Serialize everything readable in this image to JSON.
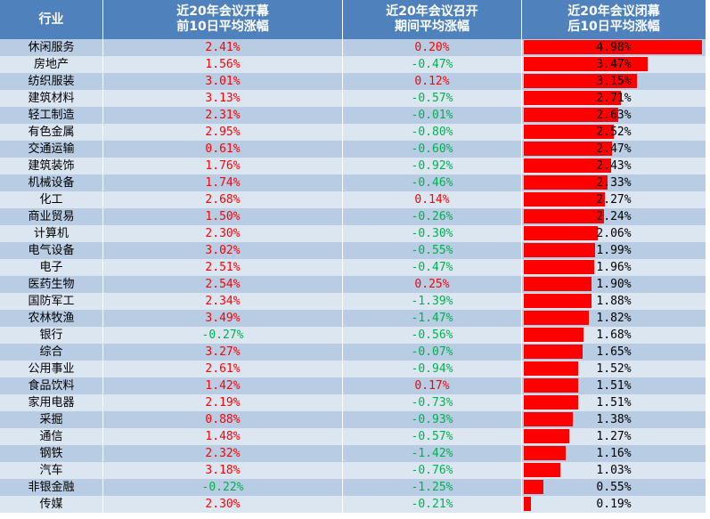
{
  "table": {
    "headers": {
      "industry": "行业",
      "pre_line1": "近20年会议开幕",
      "pre_line2": "前10日平均涨幅",
      "mid_line1": "近20年会议召开",
      "mid_line2": "期间平均涨幅",
      "post_line1": "近20年会议闭幕",
      "post_line2": "后10日平均涨幅"
    },
    "colors": {
      "header_bg": "#4f81bd",
      "row_odd": "#b8cce4",
      "row_even": "#dce6f1",
      "positive_text": "#ff0000",
      "negative_text": "#00b050",
      "bar": "#ff0000"
    }
  },
  "chart_data": {
    "type": "table",
    "columns": [
      "行业",
      "近20年会议开幕前10日平均涨幅",
      "近20年会议召开期间平均涨幅",
      "近20年会议闭幕后10日平均涨幅"
    ],
    "bar_column_max": 4.98,
    "rows": [
      {
        "industry": "休闲服务",
        "pre": "2.41%",
        "pre_value": 2.41,
        "mid": "0.20%",
        "mid_value": 0.2,
        "post": "4.98%",
        "post_value": 4.98
      },
      {
        "industry": "房地产",
        "pre": "1.56%",
        "pre_value": 1.56,
        "mid": "-0.47%",
        "mid_value": -0.47,
        "post": "3.47%",
        "post_value": 3.47
      },
      {
        "industry": "纺织服装",
        "pre": "3.01%",
        "pre_value": 3.01,
        "mid": "0.12%",
        "mid_value": 0.12,
        "post": "3.15%",
        "post_value": 3.15
      },
      {
        "industry": "建筑材料",
        "pre": "3.13%",
        "pre_value": 3.13,
        "mid": "-0.57%",
        "mid_value": -0.57,
        "post": "2.71%",
        "post_value": 2.71
      },
      {
        "industry": "轻工制造",
        "pre": "2.31%",
        "pre_value": 2.31,
        "mid": "-0.01%",
        "mid_value": -0.01,
        "post": "2.63%",
        "post_value": 2.63
      },
      {
        "industry": "有色金属",
        "pre": "2.95%",
        "pre_value": 2.95,
        "mid": "-0.80%",
        "mid_value": -0.8,
        "post": "2.52%",
        "post_value": 2.52
      },
      {
        "industry": "交通运输",
        "pre": "0.61%",
        "pre_value": 0.61,
        "mid": "-0.60%",
        "mid_value": -0.6,
        "post": "2.47%",
        "post_value": 2.47
      },
      {
        "industry": "建筑装饰",
        "pre": "1.76%",
        "pre_value": 1.76,
        "mid": "-0.92%",
        "mid_value": -0.92,
        "post": "2.43%",
        "post_value": 2.43
      },
      {
        "industry": "机械设备",
        "pre": "1.74%",
        "pre_value": 1.74,
        "mid": "-0.46%",
        "mid_value": -0.46,
        "post": "2.33%",
        "post_value": 2.33
      },
      {
        "industry": "化工",
        "pre": "2.68%",
        "pre_value": 2.68,
        "mid": "0.14%",
        "mid_value": 0.14,
        "post": "2.27%",
        "post_value": 2.27
      },
      {
        "industry": "商业贸易",
        "pre": "1.50%",
        "pre_value": 1.5,
        "mid": "-0.26%",
        "mid_value": -0.26,
        "post": "2.24%",
        "post_value": 2.24
      },
      {
        "industry": "计算机",
        "pre": "2.30%",
        "pre_value": 2.3,
        "mid": "-0.30%",
        "mid_value": -0.3,
        "post": "2.06%",
        "post_value": 2.06
      },
      {
        "industry": "电气设备",
        "pre": "3.02%",
        "pre_value": 3.02,
        "mid": "-0.55%",
        "mid_value": -0.55,
        "post": "1.99%",
        "post_value": 1.99
      },
      {
        "industry": "电子",
        "pre": "2.51%",
        "pre_value": 2.51,
        "mid": "-0.47%",
        "mid_value": -0.47,
        "post": "1.96%",
        "post_value": 1.96
      },
      {
        "industry": "医药生物",
        "pre": "2.54%",
        "pre_value": 2.54,
        "mid": "0.25%",
        "mid_value": 0.25,
        "post": "1.90%",
        "post_value": 1.9
      },
      {
        "industry": "国防军工",
        "pre": "2.34%",
        "pre_value": 2.34,
        "mid": "-1.39%",
        "mid_value": -1.39,
        "post": "1.88%",
        "post_value": 1.88
      },
      {
        "industry": "农林牧渔",
        "pre": "3.49%",
        "pre_value": 3.49,
        "mid": "-1.47%",
        "mid_value": -1.47,
        "post": "1.82%",
        "post_value": 1.82
      },
      {
        "industry": "银行",
        "pre": "-0.27%",
        "pre_value": -0.27,
        "mid": "-0.56%",
        "mid_value": -0.56,
        "post": "1.68%",
        "post_value": 1.68
      },
      {
        "industry": "综合",
        "pre": "3.27%",
        "pre_value": 3.27,
        "mid": "-0.07%",
        "mid_value": -0.07,
        "post": "1.65%",
        "post_value": 1.65
      },
      {
        "industry": "公用事业",
        "pre": "2.61%",
        "pre_value": 2.61,
        "mid": "-0.94%",
        "mid_value": -0.94,
        "post": "1.52%",
        "post_value": 1.52
      },
      {
        "industry": "食品饮料",
        "pre": "1.42%",
        "pre_value": 1.42,
        "mid": "0.17%",
        "mid_value": 0.17,
        "post": "1.51%",
        "post_value": 1.51
      },
      {
        "industry": "家用电器",
        "pre": "2.19%",
        "pre_value": 2.19,
        "mid": "-0.73%",
        "mid_value": -0.73,
        "post": "1.51%",
        "post_value": 1.51
      },
      {
        "industry": "采掘",
        "pre": "0.88%",
        "pre_value": 0.88,
        "mid": "-0.93%",
        "mid_value": -0.93,
        "post": "1.38%",
        "post_value": 1.38
      },
      {
        "industry": "通信",
        "pre": "1.48%",
        "pre_value": 1.48,
        "mid": "-0.57%",
        "mid_value": -0.57,
        "post": "1.27%",
        "post_value": 1.27
      },
      {
        "industry": "钢铁",
        "pre": "2.32%",
        "pre_value": 2.32,
        "mid": "-1.42%",
        "mid_value": -1.42,
        "post": "1.16%",
        "post_value": 1.16
      },
      {
        "industry": "汽车",
        "pre": "3.18%",
        "pre_value": 3.18,
        "mid": "-0.76%",
        "mid_value": -0.76,
        "post": "1.03%",
        "post_value": 1.03
      },
      {
        "industry": "非银金融",
        "pre": "-0.22%",
        "pre_value": -0.22,
        "mid": "-1.25%",
        "mid_value": -1.25,
        "post": "0.55%",
        "post_value": 0.55
      },
      {
        "industry": "传媒",
        "pre": "2.30%",
        "pre_value": 2.3,
        "mid": "-0.21%",
        "mid_value": -0.21,
        "post": "0.19%",
        "post_value": 0.19
      }
    ]
  }
}
